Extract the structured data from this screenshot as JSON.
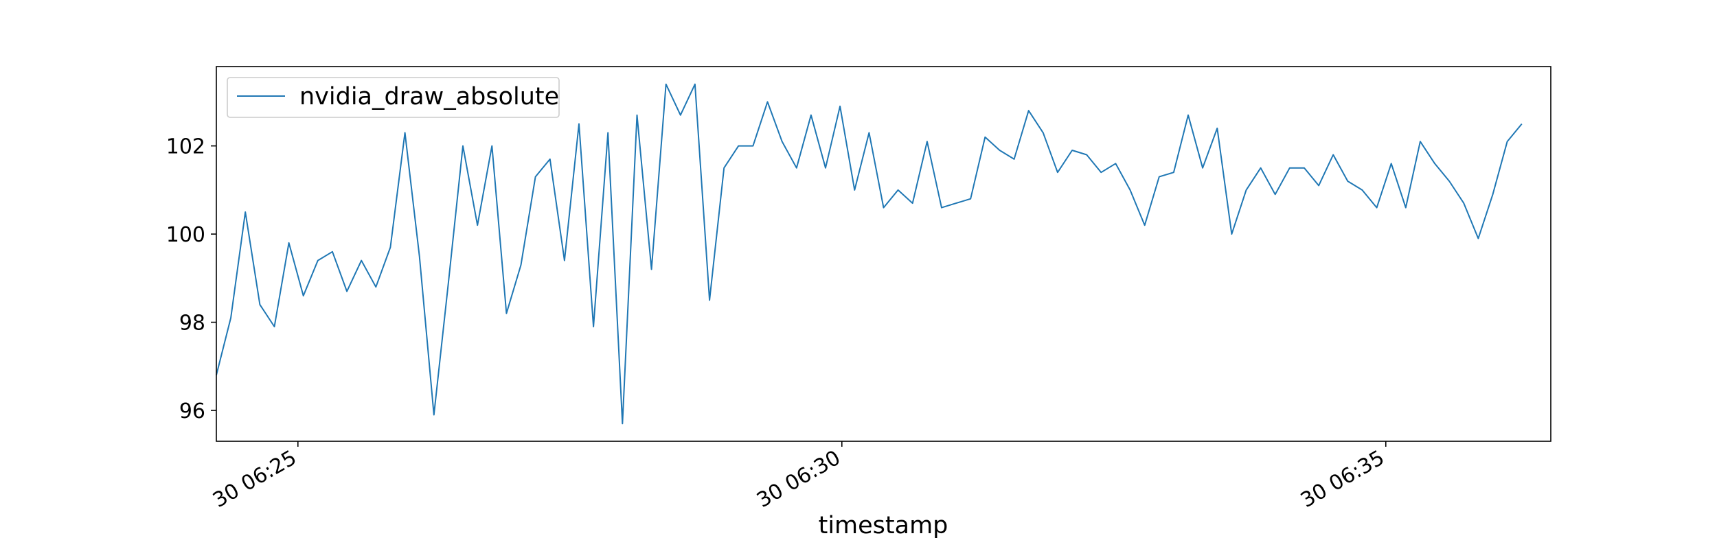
{
  "chart_data": {
    "type": "line",
    "xlabel": "timestamp",
    "ylabel": "",
    "x_start": "06:24:15",
    "x_step_seconds": 8,
    "x_ticks": [
      {
        "time": "06:25:00",
        "label": "30 06:25"
      },
      {
        "time": "06:30:00",
        "label": "30 06:30"
      },
      {
        "time": "06:35:00",
        "label": "30 06:35"
      }
    ],
    "xlim": [
      "06:24:15",
      "06:36:31"
    ],
    "ylim": [
      95.3,
      103.8
    ],
    "yticks": [
      96,
      98,
      100,
      102
    ],
    "legend_position": "upper-left",
    "grid": false,
    "series": [
      {
        "name": "nvidia_draw_absolute",
        "color": "#1f77b4",
        "values": [
          96.8,
          98.1,
          100.5,
          98.4,
          97.9,
          99.8,
          98.6,
          99.4,
          99.6,
          98.7,
          99.4,
          98.8,
          99.7,
          102.3,
          99.5,
          95.9,
          98.9,
          102.0,
          100.2,
          102.0,
          98.2,
          99.3,
          101.3,
          101.7,
          99.4,
          102.5,
          97.9,
          102.3,
          95.7,
          102.7,
          99.2,
          103.4,
          102.7,
          103.4,
          98.5,
          101.5,
          102.0,
          102.0,
          103.0,
          102.1,
          101.5,
          102.7,
          101.5,
          102.9,
          101.0,
          102.3,
          100.6,
          101.0,
          100.7,
          102.1,
          100.6,
          100.7,
          100.8,
          102.2,
          101.9,
          101.7,
          102.8,
          102.3,
          101.4,
          101.9,
          101.8,
          101.4,
          101.6,
          101.0,
          100.2,
          101.3,
          101.4,
          102.7,
          101.5,
          102.4,
          100.0,
          101.0,
          101.5,
          100.9,
          101.5,
          101.5,
          101.1,
          101.8,
          101.2,
          101.0,
          100.6,
          101.6,
          100.6,
          102.1,
          101.6,
          101.2,
          100.7,
          99.9,
          100.9,
          102.1,
          102.5
        ]
      }
    ]
  }
}
